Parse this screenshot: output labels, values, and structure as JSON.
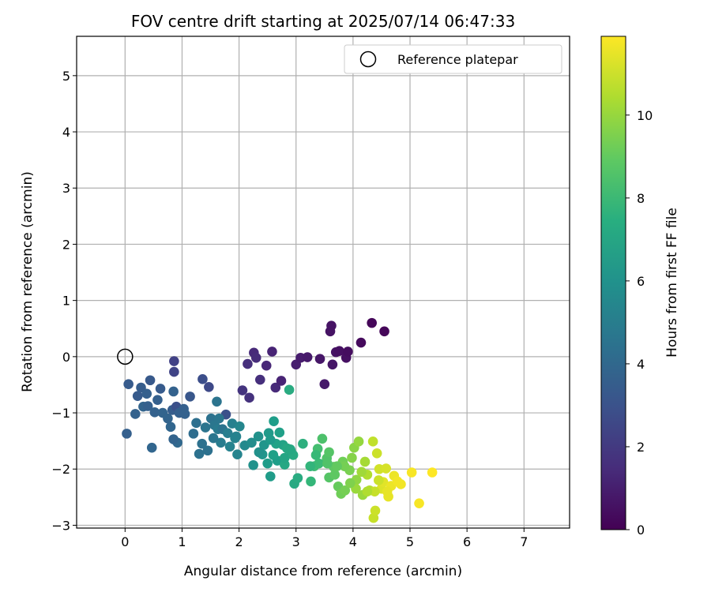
{
  "chart_data": {
    "type": "scatter",
    "title": "FOV centre drift starting at 2025/07/14 06:47:33",
    "xlabel": "Angular distance from reference (arcmin)",
    "ylabel": "Rotation from reference (arcmin)",
    "xlim": [
      -0.85,
      7.8
    ],
    "ylim": [
      -3.05,
      5.7
    ],
    "xticks": [
      0,
      1,
      2,
      3,
      4,
      5,
      6,
      7
    ],
    "yticks": [
      -3,
      -2,
      -1,
      0,
      1,
      2,
      3,
      4,
      5
    ],
    "grid": true,
    "legend": {
      "position": "top-right",
      "entries": [
        "Reference platepar"
      ]
    },
    "reference_point": {
      "x": 0,
      "y": 0,
      "marker": "open-circle"
    },
    "colorbar": {
      "label": "Hours from first FF file",
      "colormap": "viridis",
      "range": [
        0,
        11.9
      ],
      "ticks": [
        0,
        2,
        4,
        6,
        8,
        10
      ]
    },
    "points": [
      [
        0.06,
        -0.49,
        3.4
      ],
      [
        0.03,
        -1.37,
        3.6
      ],
      [
        0.18,
        -1.02,
        3.7
      ],
      [
        0.22,
        -0.7,
        3.4
      ],
      [
        0.28,
        -0.55,
        3.5
      ],
      [
        0.32,
        -0.89,
        3.8
      ],
      [
        0.38,
        -0.66,
        3.6
      ],
      [
        0.44,
        -0.42,
        3.3
      ],
      [
        0.47,
        -1.62,
        3.9
      ],
      [
        0.52,
        -0.99,
        3.7
      ],
      [
        0.57,
        -0.77,
        3.6
      ],
      [
        0.62,
        -0.57,
        3.4
      ],
      [
        0.66,
        -1.0,
        3.8
      ],
      [
        0.8,
        -1.25,
        3.9
      ],
      [
        0.83,
        -0.95,
        3.5
      ],
      [
        0.85,
        -0.62,
        3.7
      ],
      [
        0.86,
        -0.27,
        2.4
      ],
      [
        0.86,
        -0.08,
        2.3
      ],
      [
        0.9,
        -0.89,
        2.9
      ],
      [
        0.92,
        -1.53,
        4.0
      ],
      [
        0.95,
        -1.0,
        3.6
      ],
      [
        1.03,
        -0.93,
        3.6
      ],
      [
        0.85,
        -1.47,
        3.8
      ],
      [
        1.14,
        -0.71,
        3.2
      ],
      [
        1.2,
        -1.37,
        4.2
      ],
      [
        1.25,
        -1.18,
        4.3
      ],
      [
        1.3,
        -1.73,
        4.4
      ],
      [
        1.36,
        -0.4,
        2.8
      ],
      [
        1.41,
        -1.26,
        4.6
      ],
      [
        1.45,
        -1.67,
        4.4
      ],
      [
        1.47,
        -0.54,
        2.6
      ],
      [
        1.51,
        -1.1,
        4.5
      ],
      [
        1.57,
        -1.22,
        4.7
      ],
      [
        1.61,
        -0.8,
        4.6
      ],
      [
        1.63,
        -1.29,
        4.9
      ],
      [
        1.68,
        -1.53,
        5.0
      ],
      [
        1.71,
        -1.29,
        4.6
      ],
      [
        1.77,
        -1.03,
        2.9
      ],
      [
        1.8,
        -1.36,
        5.1
      ],
      [
        1.84,
        -1.6,
        5.3
      ],
      [
        1.88,
        -1.19,
        5.2
      ],
      [
        1.93,
        -1.45,
        5.3
      ],
      [
        1.97,
        -1.74,
        5.4
      ],
      [
        2.01,
        -1.24,
        5.5
      ],
      [
        2.06,
        -0.6,
        1.8
      ],
      [
        2.1,
        -1.58,
        5.6
      ],
      [
        2.15,
        -0.13,
        1.6
      ],
      [
        2.18,
        -0.73,
        1.7
      ],
      [
        2.22,
        -1.53,
        5.8
      ],
      [
        2.25,
        -1.93,
        6.0
      ],
      [
        2.26,
        0.07,
        1.4
      ],
      [
        2.3,
        -0.02,
        1.5
      ],
      [
        2.34,
        -1.42,
        6.0
      ],
      [
        2.37,
        -0.41,
        1.6
      ],
      [
        2.41,
        -1.74,
        6.2
      ],
      [
        2.44,
        -1.57,
        6.2
      ],
      [
        2.48,
        -0.16,
        1.3
      ],
      [
        2.52,
        -1.36,
        6.4
      ],
      [
        2.55,
        -2.13,
        6.5
      ],
      [
        2.58,
        0.09,
        1.2
      ],
      [
        2.61,
        -1.15,
        6.6
      ],
      [
        2.64,
        -0.55,
        1.4
      ],
      [
        2.67,
        -1.85,
        6.6
      ],
      [
        2.71,
        -1.35,
        6.7
      ],
      [
        2.74,
        -0.43,
        1.2
      ],
      [
        2.77,
        -1.57,
        6.9
      ],
      [
        2.8,
        -1.92,
        7.1
      ],
      [
        2.84,
        -1.63,
        7.1
      ],
      [
        2.88,
        -0.59,
        7.3
      ],
      [
        2.91,
        -1.68,
        7.2
      ],
      [
        2.97,
        -2.26,
        7.2
      ],
      [
        3.0,
        -0.14,
        1.0
      ],
      [
        3.03,
        -2.16,
        7.3
      ],
      [
        3.08,
        -0.02,
        0.9
      ],
      [
        3.12,
        -1.55,
        7.5
      ],
      [
        3.2,
        -0.01,
        0.8
      ],
      [
        3.26,
        -2.22,
        7.9
      ],
      [
        3.32,
        -1.95,
        8.2
      ],
      [
        3.38,
        -1.64,
        8.3
      ],
      [
        3.42,
        -0.04,
        0.7
      ],
      [
        3.46,
        -1.46,
        8.5
      ],
      [
        3.5,
        -0.49,
        0.8
      ],
      [
        3.54,
        -1.81,
        8.6
      ],
      [
        3.58,
        -2.15,
        8.7
      ],
      [
        3.6,
        0.45,
        0.6
      ],
      [
        3.62,
        0.55,
        0.6
      ],
      [
        3.64,
        -0.14,
        0.7
      ],
      [
        3.66,
        -1.96,
        8.9
      ],
      [
        3.7,
        0.08,
        0.6
      ],
      [
        3.74,
        -2.31,
        9.1
      ],
      [
        3.76,
        0.1,
        0.5
      ],
      [
        3.79,
        -2.44,
        9.3
      ],
      [
        3.82,
        -1.87,
        9.3
      ],
      [
        3.86,
        -2.38,
        9.4
      ],
      [
        3.88,
        -0.02,
        0.5
      ],
      [
        3.91,
        0.09,
        0.4
      ],
      [
        3.94,
        -2.02,
        9.5
      ],
      [
        3.98,
        -1.8,
        9.7
      ],
      [
        4.02,
        -1.62,
        9.8
      ],
      [
        4.06,
        -2.19,
        9.9
      ],
      [
        4.1,
        -1.51,
        10.0
      ],
      [
        4.14,
        0.25,
        0.3
      ],
      [
        4.17,
        -2.46,
        10.1
      ],
      [
        4.21,
        -1.87,
        10.3
      ],
      [
        4.25,
        -2.1,
        10.5
      ],
      [
        4.29,
        -2.38,
        10.6
      ],
      [
        4.33,
        0.6,
        0.2
      ],
      [
        4.35,
        -1.51,
        10.8
      ],
      [
        4.36,
        -2.87,
        10.9
      ],
      [
        4.39,
        -2.74,
        11.0
      ],
      [
        4.42,
        -1.72,
        11.0
      ],
      [
        4.46,
        -2.0,
        11.1
      ],
      [
        4.5,
        -2.35,
        11.3
      ],
      [
        4.53,
        -2.23,
        11.4
      ],
      [
        4.55,
        0.45,
        0.2
      ],
      [
        4.58,
        -1.99,
        11.2
      ],
      [
        4.62,
        -2.49,
        11.5
      ],
      [
        4.67,
        -2.3,
        11.6
      ],
      [
        4.72,
        -2.12,
        11.6
      ],
      [
        4.78,
        -2.22,
        11.7
      ],
      [
        4.84,
        -2.27,
        11.7
      ],
      [
        5.03,
        -2.06,
        11.8
      ],
      [
        5.16,
        -2.61,
        11.8
      ],
      [
        5.39,
        -2.06,
        11.9
      ],
      [
        3.35,
        -1.75,
        8.0
      ],
      [
        3.58,
        -1.7,
        8.7
      ],
      [
        3.4,
        -1.9,
        8.1
      ],
      [
        3.68,
        -2.1,
        8.9
      ],
      [
        3.85,
        -1.95,
        9.4
      ],
      [
        4.05,
        -2.35,
        10.1
      ],
      [
        4.45,
        -2.2,
        11.0
      ],
      [
        4.38,
        -2.4,
        10.9
      ],
      [
        2.35,
        -1.7,
        6.0
      ],
      [
        2.5,
        -1.9,
        6.5
      ],
      [
        2.65,
        -1.55,
        6.8
      ],
      [
        2.8,
        -1.8,
        7.0
      ],
      [
        2.6,
        -1.75,
        6.7
      ],
      [
        2.55,
        -1.48,
        6.4
      ],
      [
        2.95,
        -1.75,
        7.2
      ],
      [
        1.95,
        -1.42,
        5.3
      ],
      [
        1.55,
        -1.45,
        4.7
      ],
      [
        1.35,
        -1.55,
        4.4
      ],
      [
        1.65,
        -1.1,
        4.7
      ],
      [
        1.05,
        -1.02,
        3.7
      ],
      [
        0.75,
        -1.1,
        3.8
      ],
      [
        0.4,
        -0.88,
        3.6
      ],
      [
        3.55,
        -1.9,
        8.6
      ],
      [
        3.72,
        -1.95,
        9.0
      ],
      [
        3.95,
        -2.25,
        9.6
      ],
      [
        4.15,
        -2.05,
        10.2
      ],
      [
        4.25,
        -2.4,
        10.5
      ],
      [
        4.6,
        -2.4,
        11.5
      ],
      [
        3.25,
        -1.95,
        7.8
      ],
      [
        2.9,
        -1.65,
        7.1
      ]
    ]
  }
}
